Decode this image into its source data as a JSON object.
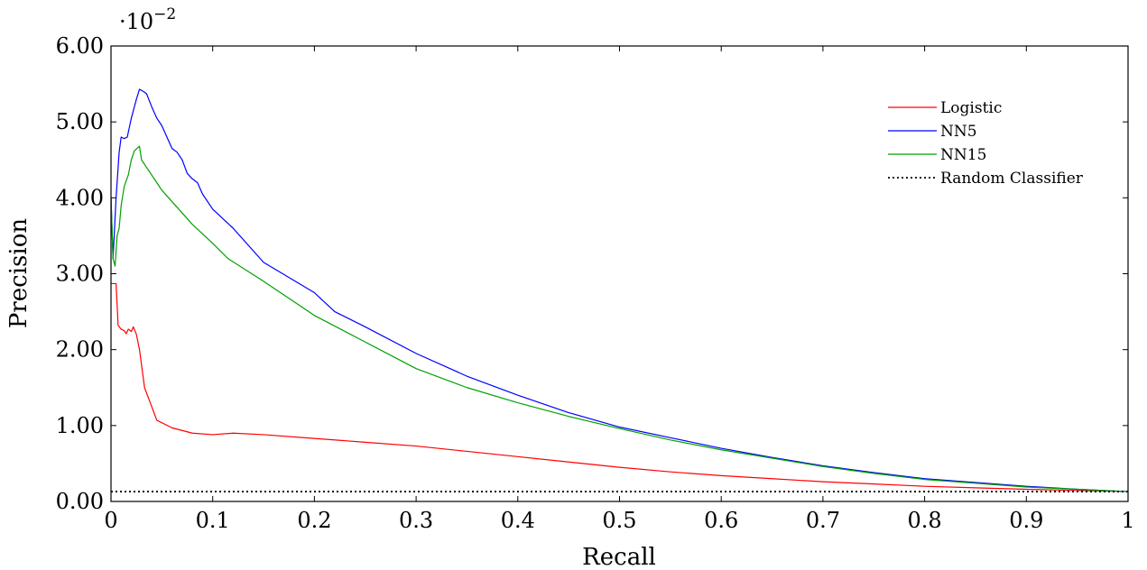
{
  "chart_data": {
    "type": "line",
    "title": "",
    "xlabel": "Recall",
    "ylabel": "Precision",
    "xlim": [
      0,
      1
    ],
    "ylim": [
      0,
      6
    ],
    "y_multiplier": "·10",
    "y_multiplier_exp": "−2",
    "x_ticks": [
      0,
      0.1,
      0.2,
      0.3,
      0.4,
      0.5,
      0.6,
      0.7,
      0.8,
      0.9,
      1
    ],
    "x_tick_labels": [
      "0",
      "0.1",
      "0.2",
      "0.3",
      "0.4",
      "0.5",
      "0.6",
      "0.7",
      "0.8",
      "0.9",
      "1"
    ],
    "y_ticks": [
      0,
      1,
      2,
      3,
      4,
      5,
      6
    ],
    "y_tick_labels": [
      "0.00",
      "1.00",
      "2.00",
      "3.00",
      "4.00",
      "5.00",
      "6.00"
    ],
    "grid": false,
    "legend_position": "top-right",
    "series": [
      {
        "name": "Logistic",
        "color": "#ff0000",
        "dash": "solid",
        "points": [
          [
            0.0,
            2.87
          ],
          [
            0.005,
            2.87
          ],
          [
            0.007,
            2.32
          ],
          [
            0.01,
            2.27
          ],
          [
            0.013,
            2.25
          ],
          [
            0.015,
            2.21
          ],
          [
            0.017,
            2.27
          ],
          [
            0.02,
            2.24
          ],
          [
            0.022,
            2.3
          ],
          [
            0.025,
            2.2
          ],
          [
            0.028,
            2.0
          ],
          [
            0.03,
            1.8
          ],
          [
            0.033,
            1.5
          ],
          [
            0.04,
            1.25
          ],
          [
            0.045,
            1.07
          ],
          [
            0.06,
            0.97
          ],
          [
            0.08,
            0.9
          ],
          [
            0.1,
            0.88
          ],
          [
            0.12,
            0.9
          ],
          [
            0.15,
            0.88
          ],
          [
            0.2,
            0.83
          ],
          [
            0.25,
            0.78
          ],
          [
            0.3,
            0.73
          ],
          [
            0.35,
            0.66
          ],
          [
            0.4,
            0.59
          ],
          [
            0.45,
            0.52
          ],
          [
            0.5,
            0.45
          ],
          [
            0.55,
            0.39
          ],
          [
            0.6,
            0.34
          ],
          [
            0.65,
            0.3
          ],
          [
            0.7,
            0.26
          ],
          [
            0.75,
            0.23
          ],
          [
            0.8,
            0.2
          ],
          [
            0.85,
            0.18
          ],
          [
            0.9,
            0.16
          ],
          [
            0.95,
            0.145
          ],
          [
            1.0,
            0.13
          ]
        ]
      },
      {
        "name": "NN5",
        "color": "#0000ff",
        "dash": "solid",
        "points": [
          [
            0.0,
            4.0
          ],
          [
            0.002,
            3.2
          ],
          [
            0.005,
            4.0
          ],
          [
            0.008,
            4.6
          ],
          [
            0.01,
            4.8
          ],
          [
            0.013,
            4.78
          ],
          [
            0.016,
            4.8
          ],
          [
            0.02,
            5.05
          ],
          [
            0.025,
            5.3
          ],
          [
            0.028,
            5.43
          ],
          [
            0.032,
            5.4
          ],
          [
            0.035,
            5.37
          ],
          [
            0.04,
            5.2
          ],
          [
            0.045,
            5.05
          ],
          [
            0.05,
            4.95
          ],
          [
            0.055,
            4.8
          ],
          [
            0.06,
            4.65
          ],
          [
            0.065,
            4.6
          ],
          [
            0.07,
            4.5
          ],
          [
            0.075,
            4.32
          ],
          [
            0.08,
            4.25
          ],
          [
            0.085,
            4.2
          ],
          [
            0.09,
            4.05
          ],
          [
            0.1,
            3.85
          ],
          [
            0.12,
            3.6
          ],
          [
            0.15,
            3.15
          ],
          [
            0.2,
            2.75
          ],
          [
            0.22,
            2.5
          ],
          [
            0.25,
            2.3
          ],
          [
            0.3,
            1.95
          ],
          [
            0.35,
            1.65
          ],
          [
            0.4,
            1.4
          ],
          [
            0.45,
            1.17
          ],
          [
            0.5,
            0.98
          ],
          [
            0.55,
            0.84
          ],
          [
            0.6,
            0.7
          ],
          [
            0.65,
            0.58
          ],
          [
            0.7,
            0.47
          ],
          [
            0.75,
            0.38
          ],
          [
            0.8,
            0.3
          ],
          [
            0.85,
            0.25
          ],
          [
            0.9,
            0.2
          ],
          [
            0.95,
            0.16
          ],
          [
            1.0,
            0.13
          ]
        ]
      },
      {
        "name": "NN15",
        "color": "#00a000",
        "dash": "solid",
        "points": [
          [
            0.0,
            4.0
          ],
          [
            0.002,
            3.2
          ],
          [
            0.004,
            3.1
          ],
          [
            0.006,
            3.5
          ],
          [
            0.008,
            3.6
          ],
          [
            0.01,
            3.9
          ],
          [
            0.013,
            4.15
          ],
          [
            0.017,
            4.3
          ],
          [
            0.02,
            4.5
          ],
          [
            0.023,
            4.62
          ],
          [
            0.028,
            4.68
          ],
          [
            0.03,
            4.5
          ],
          [
            0.035,
            4.4
          ],
          [
            0.04,
            4.3
          ],
          [
            0.045,
            4.2
          ],
          [
            0.05,
            4.1
          ],
          [
            0.06,
            3.95
          ],
          [
            0.07,
            3.8
          ],
          [
            0.08,
            3.65
          ],
          [
            0.1,
            3.4
          ],
          [
            0.115,
            3.2
          ],
          [
            0.15,
            2.9
          ],
          [
            0.2,
            2.45
          ],
          [
            0.25,
            2.1
          ],
          [
            0.3,
            1.75
          ],
          [
            0.35,
            1.5
          ],
          [
            0.4,
            1.3
          ],
          [
            0.45,
            1.12
          ],
          [
            0.5,
            0.96
          ],
          [
            0.55,
            0.81
          ],
          [
            0.6,
            0.68
          ],
          [
            0.65,
            0.57
          ],
          [
            0.7,
            0.46
          ],
          [
            0.75,
            0.37
          ],
          [
            0.8,
            0.29
          ],
          [
            0.85,
            0.24
          ],
          [
            0.9,
            0.19
          ],
          [
            0.95,
            0.16
          ],
          [
            1.0,
            0.13
          ]
        ]
      },
      {
        "name": "Random Classifier",
        "color": "#000000",
        "dash": "dotted",
        "points": [
          [
            0.0,
            0.13
          ],
          [
            1.0,
            0.13
          ]
        ]
      }
    ]
  }
}
